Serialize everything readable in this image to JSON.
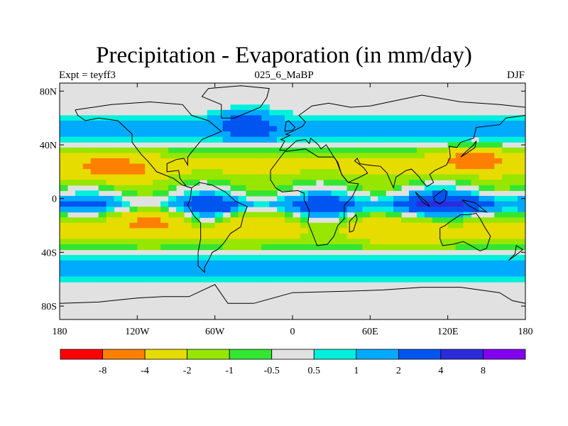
{
  "title": "Precipitation - Evaporation (in mm/day)",
  "subtitle_left": "Expt = teyff3",
  "subtitle_center": "025_6_MaBP",
  "subtitle_right": "DJF",
  "map": {
    "projection": "cylindrical equidistant",
    "lon_range": [
      -180,
      180
    ],
    "lat_range": [
      -90,
      90
    ],
    "lat_ticks": [
      {
        "value": 80,
        "label": "80N"
      },
      {
        "value": 40,
        "label": "40N"
      },
      {
        "value": 0,
        "label": "0"
      },
      {
        "value": -40,
        "label": "40S"
      },
      {
        "value": -80,
        "label": "80S"
      }
    ],
    "lon_ticks": [
      {
        "value": -180,
        "label": "180"
      },
      {
        "value": -120,
        "label": "120W"
      },
      {
        "value": -60,
        "label": "60W"
      },
      {
        "value": 0,
        "label": "0"
      },
      {
        "value": 60,
        "label": "60E"
      },
      {
        "value": 120,
        "label": "120E"
      },
      {
        "value": 180,
        "label": "180"
      }
    ]
  },
  "colorbar": {
    "colors": [
      "#ff0000",
      "#ff8000",
      "#e6dc00",
      "#96e600",
      "#32e632",
      "#e1e1e1",
      "#00f0dc",
      "#00aaff",
      "#0055f0",
      "#2b2bdc",
      "#8200f0"
    ],
    "labels": [
      "-8",
      "-4",
      "-2",
      "-1",
      "-0.5",
      "0.5",
      "1",
      "2",
      "4",
      "8"
    ]
  }
}
